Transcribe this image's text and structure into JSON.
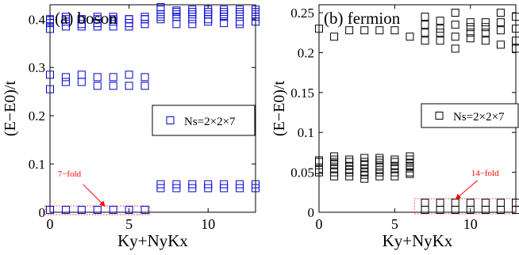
{
  "chart_data": [
    {
      "type": "scatter",
      "panel_label": "(a) boson",
      "ylabel": "(E−E0)/t",
      "xlabel": "Ky+NyKx",
      "xlim": [
        0,
        13
      ],
      "ylim": [
        0,
        0.43
      ],
      "xticks": [
        "0",
        "5",
        "10"
      ],
      "yticks": [
        "0",
        "0.1",
        "0.2",
        "0.3",
        "0.4"
      ],
      "marker_color": "#0000cc",
      "legend": "Ns=2×2×7",
      "legend_position": "center-right",
      "annotation": {
        "text": "7−fold",
        "target_x": 3.5,
        "target_y": 0.005,
        "color": "#ff0000"
      },
      "highlight_box": {
        "x_from": -0.3,
        "x_to": 6.3,
        "y_from": -0.005,
        "y_to": 0.013,
        "color": "#ff0000"
      },
      "series": [
        {
          "x": [
            0,
            1,
            2,
            3,
            4,
            5,
            6,
            0,
            1,
            2,
            3,
            4,
            5,
            6,
            0,
            1,
            2,
            3,
            4,
            5,
            6,
            0,
            1,
            2,
            3,
            4,
            5,
            6,
            0,
            1,
            2,
            3,
            4,
            5,
            6,
            0,
            1,
            2,
            3,
            4,
            5,
            6,
            0,
            1,
            2,
            3,
            4,
            5,
            6,
            7,
            8,
            9,
            10,
            11,
            12,
            13,
            7,
            8,
            9,
            10,
            11,
            12,
            13,
            7,
            8,
            9,
            10,
            11,
            12,
            13,
            7,
            8,
            9,
            10,
            11,
            12,
            13,
            7,
            8,
            9,
            10,
            11,
            12,
            13,
            7,
            8,
            9,
            10,
            11,
            12,
            13,
            7,
            8,
            9,
            10,
            11,
            12,
            13
          ],
          "y": [
            0.005,
            0.005,
            0.005,
            0.005,
            0.005,
            0.005,
            0.005,
            0.255,
            0.27,
            0.27,
            0.262,
            0.262,
            0.262,
            0.262,
            0.285,
            0.28,
            0.285,
            0.28,
            0.28,
            0.285,
            0.28,
            0.38,
            0.385,
            0.385,
            0.385,
            0.385,
            0.385,
            0.39,
            0.392,
            0.395,
            0.39,
            0.392,
            0.395,
            0.392,
            0.4,
            0.398,
            0.405,
            0.4,
            0.405,
            0.405,
            0.4,
            0.405,
            0.4,
            0.4,
            0.4,
            0.4,
            0.4,
            0.4,
            0.4,
            0.05,
            0.05,
            0.05,
            0.05,
            0.05,
            0.05,
            0.05,
            0.058,
            0.058,
            0.058,
            0.058,
            0.058,
            0.058,
            0.058,
            0.4,
            0.39,
            0.39,
            0.395,
            0.392,
            0.39,
            0.395,
            0.405,
            0.405,
            0.4,
            0.4,
            0.405,
            0.395,
            0.405,
            0.41,
            0.41,
            0.41,
            0.41,
            0.41,
            0.41,
            0.41,
            0.425,
            0.415,
            0.415,
            0.415,
            0.415,
            0.415,
            0.42,
            0.42,
            0.418,
            0.42,
            0.42,
            0.42,
            0.42,
            0.415
          ]
        }
      ]
    },
    {
      "type": "scatter",
      "panel_label": "(b) fermion",
      "ylabel": "(E−E0)/t",
      "xlabel": "Ky+NyKx",
      "xlim": [
        0,
        13
      ],
      "ylim": [
        0,
        0.26
      ],
      "xticks": [
        "0",
        "5",
        "10"
      ],
      "yticks": [
        "0",
        "0.05",
        "0.1",
        "0.15",
        "0.2",
        "0.25"
      ],
      "marker_color": "#000000",
      "legend": "Ns=2×2×7",
      "legend_position": "center-right",
      "annotation": {
        "text": "14−fold",
        "target_x": 9,
        "target_y": 0.012,
        "color": "#ff0000"
      },
      "highlight_box": {
        "x_from": 6.3,
        "x_to": 13,
        "y_from": -0.002,
        "y_to": 0.017,
        "color": "#ff0000"
      },
      "series": [
        {
          "x": [
            0,
            0,
            0,
            0,
            1,
            1,
            1,
            1,
            1,
            1,
            1,
            2,
            2,
            2,
            2,
            2,
            2,
            3,
            3,
            3,
            3,
            3,
            3,
            3,
            4,
            4,
            4,
            4,
            4,
            4,
            4,
            5,
            5,
            5,
            5,
            5,
            5,
            6,
            6,
            6,
            6,
            6,
            6,
            6,
            0,
            1,
            2,
            3,
            4,
            5,
            6,
            7,
            8,
            9,
            10,
            11,
            12,
            13,
            7,
            8,
            9,
            10,
            11,
            12,
            13,
            7,
            7,
            7,
            7,
            8,
            8,
            8,
            8,
            9,
            9,
            9,
            9,
            10,
            10,
            10,
            10,
            11,
            11,
            11,
            11,
            12,
            12,
            12,
            12,
            13,
            13,
            13,
            13
          ],
          "y": [
            0.05,
            0.053,
            0.063,
            0.065,
            0.045,
            0.05,
            0.055,
            0.06,
            0.063,
            0.066,
            0.07,
            0.045,
            0.05,
            0.053,
            0.058,
            0.063,
            0.066,
            0.042,
            0.047,
            0.05,
            0.055,
            0.06,
            0.063,
            0.068,
            0.045,
            0.05,
            0.053,
            0.057,
            0.062,
            0.065,
            0.068,
            0.045,
            0.05,
            0.055,
            0.058,
            0.063,
            0.066,
            0.048,
            0.05,
            0.055,
            0.058,
            0.062,
            0.066,
            0.07,
            0.23,
            0.22,
            0.228,
            0.228,
            0.228,
            0.228,
            0.22,
            0.003,
            0.003,
            0.003,
            0.003,
            0.003,
            0.003,
            0.003,
            0.012,
            0.012,
            0.012,
            0.012,
            0.012,
            0.012,
            0.012,
            0.215,
            0.225,
            0.235,
            0.245,
            0.215,
            0.225,
            0.23,
            0.24,
            0.205,
            0.22,
            0.235,
            0.25,
            0.218,
            0.225,
            0.232,
            0.238,
            0.215,
            0.225,
            0.232,
            0.238,
            0.21,
            0.228,
            0.238,
            0.25,
            0.205,
            0.215,
            0.23,
            0.245
          ]
        }
      ]
    }
  ]
}
